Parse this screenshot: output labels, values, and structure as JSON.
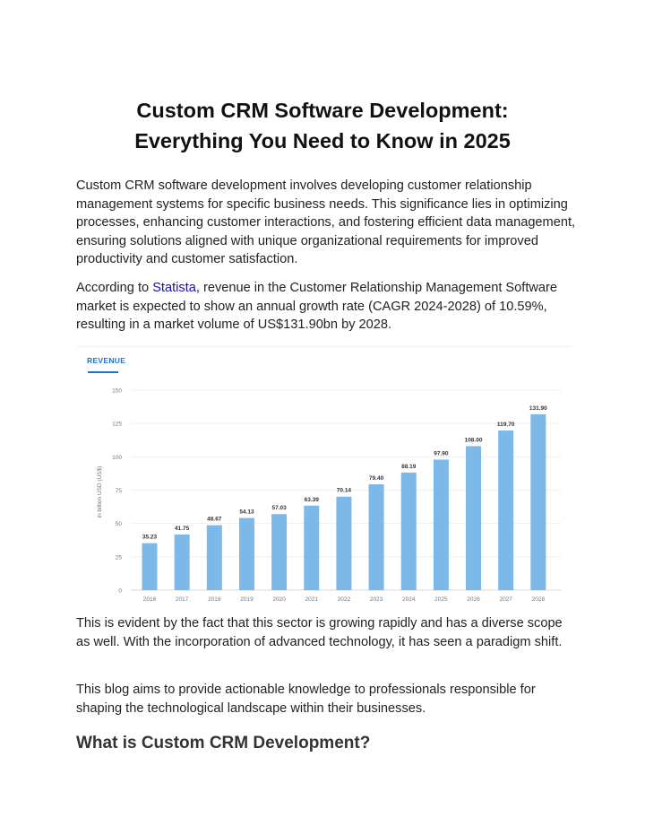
{
  "article": {
    "title_line1": "Custom CRM Software Development:",
    "title_line2": "Everything You Need to Know in 2025",
    "p1": "Custom CRM software development involves developing customer relationship management systems for specific business needs. This significance lies in optimizing processes, enhancing customer interactions, and fostering efficient data management, ensuring solutions aligned with unique organizational requirements for improved productivity and customer satisfaction.",
    "p2_before": "According to ",
    "p2_link": "Statista",
    "p2_after": ", revenue in the Customer Relationship Management Software market is expected to show an annual growth rate (CAGR 2024-2028) of 10.59%, resulting in a market volume of US$131.90bn by 2028.",
    "p3": "This is evident by the fact that this sector is growing rapidly and has a diverse scope as well. With the incorporation of advanced technology, it has seen a paradigm shift.",
    "p4": "This blog aims to provide actionable knowledge to professionals responsible for shaping the technological landscape within their businesses.",
    "h2": "What is Custom CRM Development?"
  },
  "chart_tab": "REVENUE",
  "colors": {
    "bar": "#7cb9e8",
    "tab": "#1e72c9",
    "link": "#1a0dab"
  },
  "chart_data": {
    "type": "bar",
    "categories": [
      "2016",
      "2017",
      "2018",
      "2019",
      "2020",
      "2021",
      "2022",
      "2023",
      "2024",
      "2025",
      "2026",
      "2027",
      "2028"
    ],
    "values": [
      35.23,
      41.75,
      48.67,
      54.13,
      57.03,
      63.39,
      70.14,
      79.4,
      88.19,
      97.9,
      108.0,
      119.7,
      131.9
    ],
    "data_labels": [
      "35.23",
      "41.75",
      "48.67",
      "54.13",
      "57.03",
      "63.39",
      "70.14",
      "79.40",
      "88.19",
      "97.90",
      "108.00",
      "119.70",
      "131.90"
    ],
    "ylabel": "in billion USD (US$)",
    "yticks": [
      0,
      25,
      50,
      75,
      100,
      125,
      150
    ],
    "ylim": [
      0,
      150
    ],
    "grid": true
  }
}
